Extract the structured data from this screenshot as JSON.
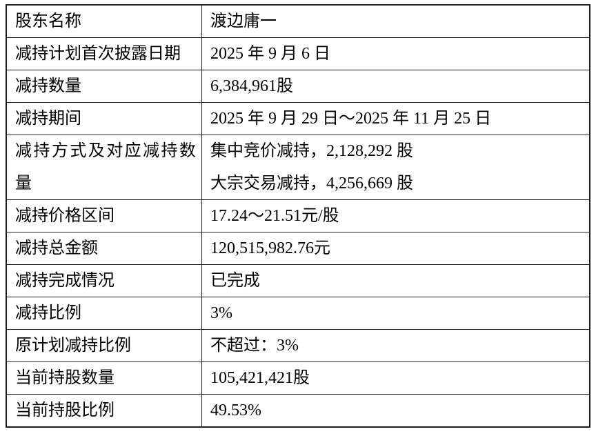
{
  "colors": {
    "background": "#ffffff",
    "border": "#1c1c1c",
    "text": "#000000"
  },
  "table": {
    "rows": [
      {
        "label": "股东名称",
        "value": "渡边庸一"
      },
      {
        "label": "减持计划首次披露日期",
        "value": "2025 年 9 月 6 日"
      },
      {
        "label": "减持数量",
        "value": "6,384,961股"
      },
      {
        "label": "减持期间",
        "value": "2025 年 9 月 29 日～2025 年 11 月 25 日"
      },
      {
        "label": "减持方式及对应减持数量",
        "value_lines": [
          "集中竞价减持，2,128,292 股",
          "大宗交易减持，4,256,669 股"
        ]
      },
      {
        "label": "减持价格区间",
        "value": "17.24～21.51元/股"
      },
      {
        "label": "减持总金额",
        "value": "120,515,982.76元"
      },
      {
        "label": "减持完成情况",
        "value": "已完成"
      },
      {
        "label": "减持比例",
        "value": "3%"
      },
      {
        "label": "原计划减持比例",
        "value": "不超过：3%"
      },
      {
        "label": "当前持股数量",
        "value": "105,421,421股"
      },
      {
        "label": "当前持股比例",
        "value": "49.53%"
      }
    ]
  }
}
